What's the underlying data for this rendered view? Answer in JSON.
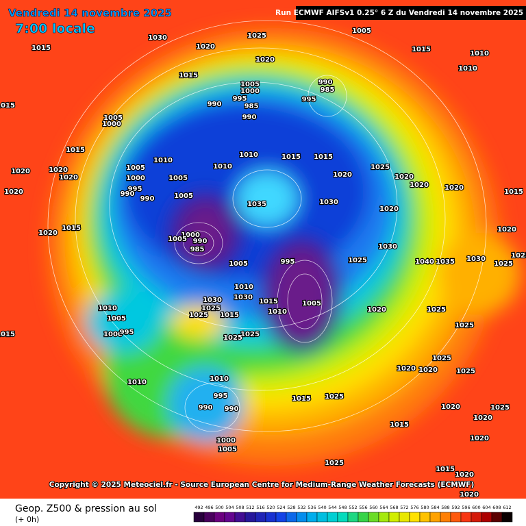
{
  "header": {
    "date": "Vendredi 14 novembre 2025",
    "time": "7:00 locale",
    "run": "Run ECMWF AIFSv1 0.25° 6 Z du Vendredi 14 novembre 2025"
  },
  "copyright": "Copyright © 2025 Meteociel.fr - Source European Centre for Medium-Range Weather Forecasts (ECMWF)",
  "footer": {
    "title": "Geop. Z500 & pression au sol",
    "lead": "(+ 0h)"
  },
  "scale": {
    "values": [
      492,
      496,
      500,
      504,
      508,
      512,
      516,
      520,
      524,
      528,
      532,
      536,
      540,
      544,
      548,
      552,
      556,
      560,
      564,
      568,
      572,
      576,
      580,
      584,
      588,
      592,
      596,
      600,
      604,
      608,
      612
    ]
  },
  "pressure_labels": [
    1030,
    1015,
    1020,
    1025,
    1005,
    1015,
    1010,
    1010,
    1015,
    1020,
    1005,
    1000,
    995,
    985,
    990,
    990,
    990,
    985,
    995,
    1015,
    1005,
    1000,
    1015,
    1010,
    1005,
    1005,
    1000,
    995,
    990,
    990,
    1010,
    1015,
    1015,
    1010,
    1020,
    1025,
    1020,
    1020,
    1020,
    1015,
    1020,
    1020,
    1020,
    1020,
    1005,
    1035,
    1030,
    1020,
    1015,
    1020,
    1000,
    990,
    985,
    1005,
    1005,
    995,
    1025,
    1030,
    1040,
    1010,
    1030,
    1015,
    1010,
    1005,
    1020,
    1025,
    1030,
    1025,
    1025,
    1015,
    1025,
    1025,
    1010,
    1005,
    1000,
    995,
    1015,
    1010,
    1010,
    995,
    990,
    990,
    1000,
    1005,
    1015,
    1025,
    1020,
    1020,
    1025,
    1025,
    1020,
    1020,
    1020,
    1015,
    1025,
    1015,
    1020,
    1020,
    1025,
    1025,
    1020,
    1025,
    1025,
    1030,
    1035
  ]
}
